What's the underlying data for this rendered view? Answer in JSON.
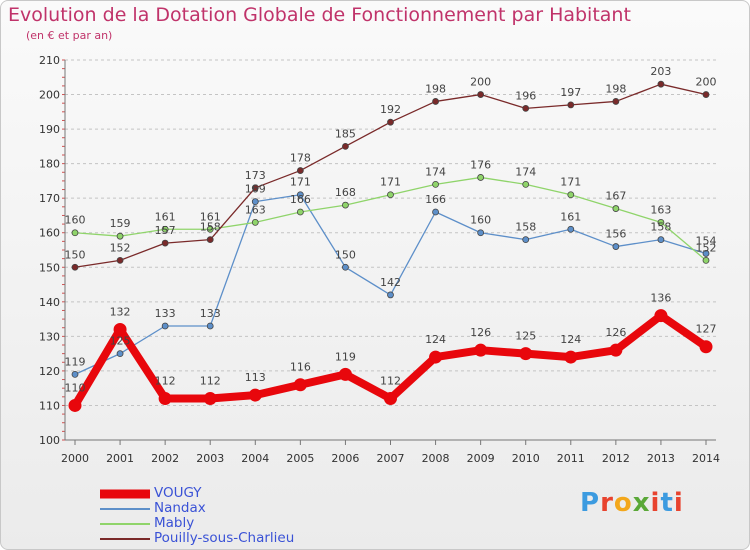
{
  "title": "Evolution de la Dotation Globale de Fonctionnement par Habitant",
  "subtitle": "(en € et par an)",
  "brand": {
    "text": "Proxiti",
    "letters": [
      "P",
      "r",
      "o",
      "x",
      "i",
      "t",
      "i"
    ],
    "colors": [
      "#3c9be0",
      "#e8432e",
      "#f3a71b",
      "#5aa838",
      "#e8432e",
      "#3c9be0",
      "#e8432e"
    ]
  },
  "chart_data": {
    "type": "line",
    "title": "Evolution de la Dotation Globale de Fonctionnement par Habitant",
    "x": [
      "2000",
      "2001",
      "2002",
      "2003",
      "2004",
      "2005",
      "2006",
      "2007",
      "2008",
      "2009",
      "2010",
      "2011",
      "2012",
      "2013",
      "2014"
    ],
    "ylim": [
      100,
      210
    ],
    "yticks": [
      100,
      110,
      120,
      130,
      140,
      150,
      160,
      170,
      180,
      190,
      200,
      210
    ],
    "grid": "horizontal-dashed",
    "legend_placement": "bottom-left",
    "series": [
      {
        "name": "VOUGY",
        "color": "#e8070c",
        "values": [
          110,
          132,
          112,
          112,
          113,
          116,
          119,
          112,
          124,
          126,
          125,
          124,
          126,
          136,
          127
        ]
      },
      {
        "name": "Nandax",
        "color": "#5d8fc9",
        "values": [
          119,
          125,
          133,
          133,
          169,
          171,
          150,
          142,
          166,
          160,
          158,
          161,
          156,
          158,
          154
        ]
      },
      {
        "name": "Mably",
        "color": "#8fd46a",
        "values": [
          160,
          159,
          161,
          161,
          163,
          166,
          168,
          171,
          174,
          176,
          174,
          171,
          167,
          163,
          152
        ]
      },
      {
        "name": "Pouilly-sous-Charlieu",
        "color": "#7a2a2a",
        "values": [
          150,
          152,
          157,
          158,
          173,
          178,
          185,
          192,
          198,
          200,
          196,
          197,
          198,
          203,
          200
        ]
      }
    ]
  }
}
